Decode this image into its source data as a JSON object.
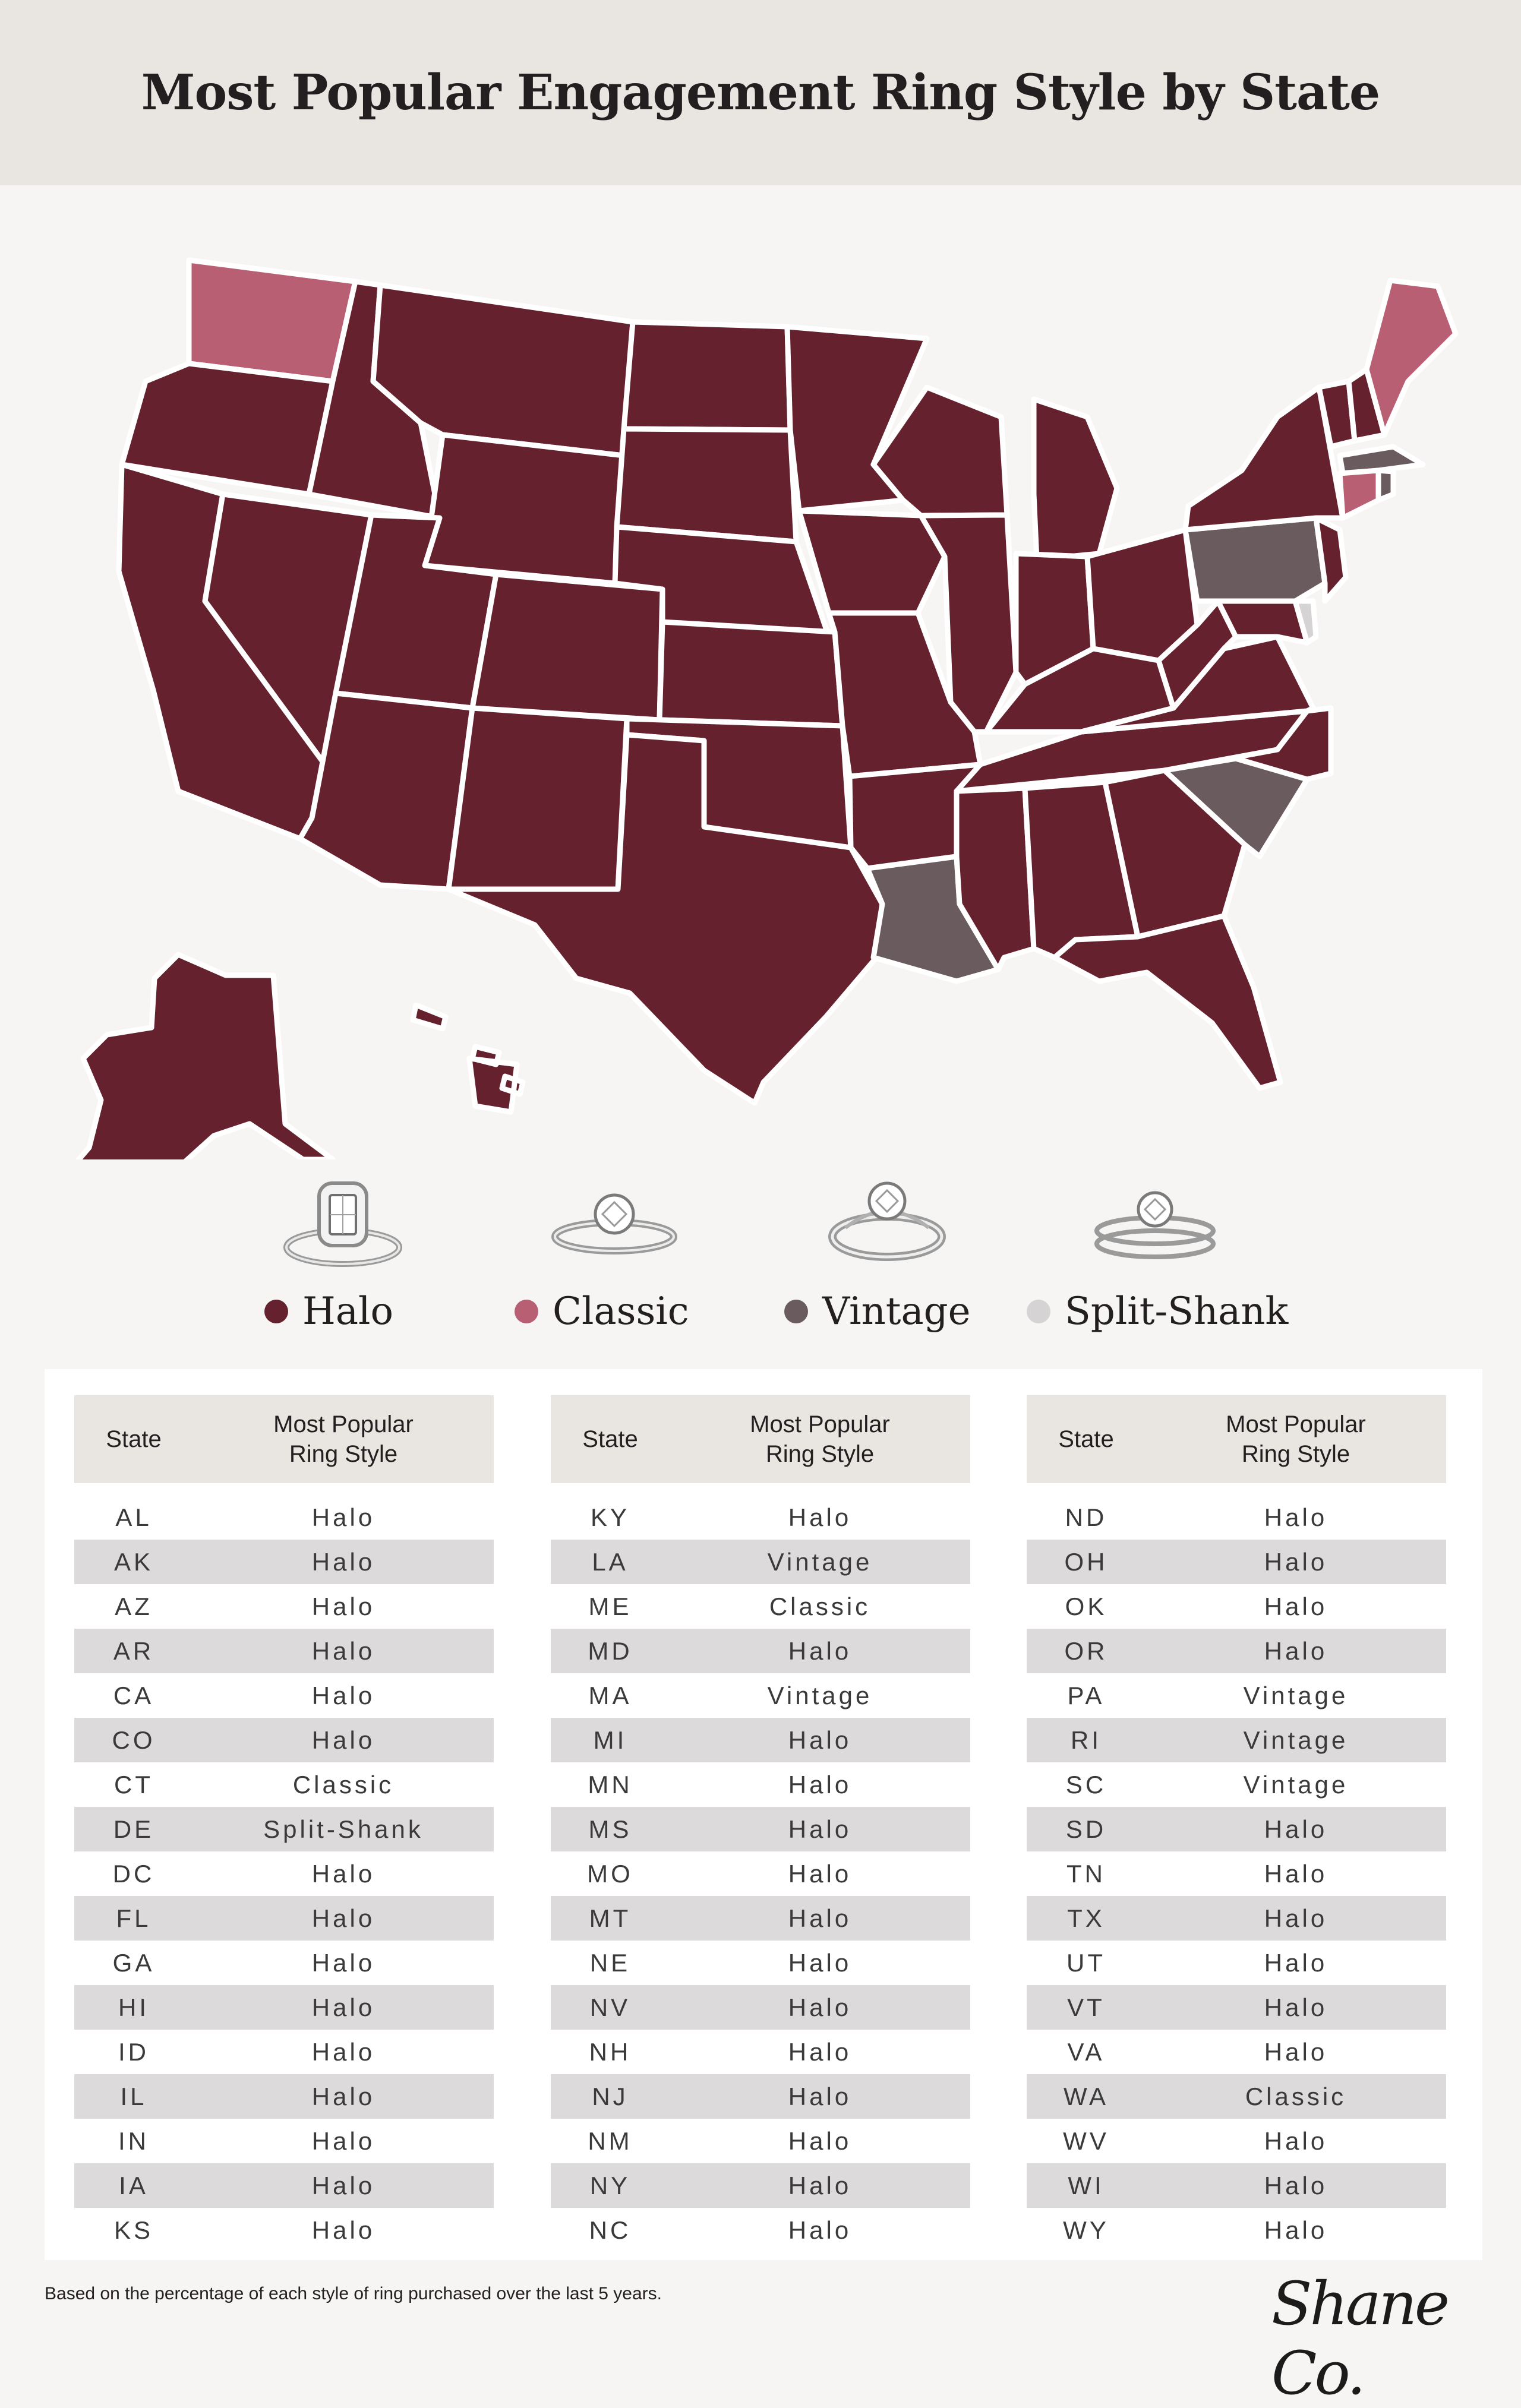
{
  "title": "Most Popular Engagement Ring Style by State",
  "colors": {
    "halo": "#65222e",
    "classic": "#b95f74",
    "vintage": "#6a5c5e",
    "split_shank": "#d6d3d4",
    "header_bg": "#e9e5e0",
    "page_bg": "#f6f5f4"
  },
  "legend": [
    {
      "label": "Halo",
      "color": "#65222e",
      "icon": "halo-ring-icon"
    },
    {
      "label": "Classic",
      "color": "#b95f74",
      "icon": "classic-ring-icon"
    },
    {
      "label": "Vintage",
      "color": "#6a5c5e",
      "icon": "vintage-ring-icon"
    },
    {
      "label": "Split-Shank",
      "color": "#d6d3d4",
      "icon": "split-shank-ring-icon"
    }
  ],
  "table_header": {
    "state": "State",
    "style_line1": "Most Popular",
    "style_line2": "Ring Style"
  },
  "tables": [
    [
      [
        "AL",
        "Halo"
      ],
      [
        "AK",
        "Halo"
      ],
      [
        "AZ",
        "Halo"
      ],
      [
        "AR",
        "Halo"
      ],
      [
        "CA",
        "Halo"
      ],
      [
        "CO",
        "Halo"
      ],
      [
        "CT",
        "Classic"
      ],
      [
        "DE",
        "Split-Shank"
      ],
      [
        "DC",
        "Halo"
      ],
      [
        "FL",
        "Halo"
      ],
      [
        "GA",
        "Halo"
      ],
      [
        "HI",
        "Halo"
      ],
      [
        "ID",
        "Halo"
      ],
      [
        "IL",
        "Halo"
      ],
      [
        "IN",
        "Halo"
      ],
      [
        "IA",
        "Halo"
      ],
      [
        "KS",
        "Halo"
      ]
    ],
    [
      [
        "KY",
        "Halo"
      ],
      [
        "LA",
        "Vintage"
      ],
      [
        "ME",
        "Classic"
      ],
      [
        "MD",
        "Halo"
      ],
      [
        "MA",
        "Vintage"
      ],
      [
        "MI",
        "Halo"
      ],
      [
        "MN",
        "Halo"
      ],
      [
        "MS",
        "Halo"
      ],
      [
        "MO",
        "Halo"
      ],
      [
        "MT",
        "Halo"
      ],
      [
        "NE",
        "Halo"
      ],
      [
        "NV",
        "Halo"
      ],
      [
        "NH",
        "Halo"
      ],
      [
        "NJ",
        "Halo"
      ],
      [
        "NM",
        "Halo"
      ],
      [
        "NY",
        "Halo"
      ],
      [
        "NC",
        "Halo"
      ]
    ],
    [
      [
        "ND",
        "Halo"
      ],
      [
        "OH",
        "Halo"
      ],
      [
        "OK",
        "Halo"
      ],
      [
        "OR",
        "Halo"
      ],
      [
        "PA",
        "Vintage"
      ],
      [
        "RI",
        "Vintage"
      ],
      [
        "SC",
        "Vintage"
      ],
      [
        "SD",
        "Halo"
      ],
      [
        "TN",
        "Halo"
      ],
      [
        "TX",
        "Halo"
      ],
      [
        "UT",
        "Halo"
      ],
      [
        "VT",
        "Halo"
      ],
      [
        "VA",
        "Halo"
      ],
      [
        "WA",
        "Classic"
      ],
      [
        "WV",
        "Halo"
      ],
      [
        "WI",
        "Halo"
      ],
      [
        "WY",
        "Halo"
      ]
    ]
  ],
  "footnote": "Based on the percentage of each style of ring purchased over the last 5 years.",
  "logo": "Shane Co."
}
